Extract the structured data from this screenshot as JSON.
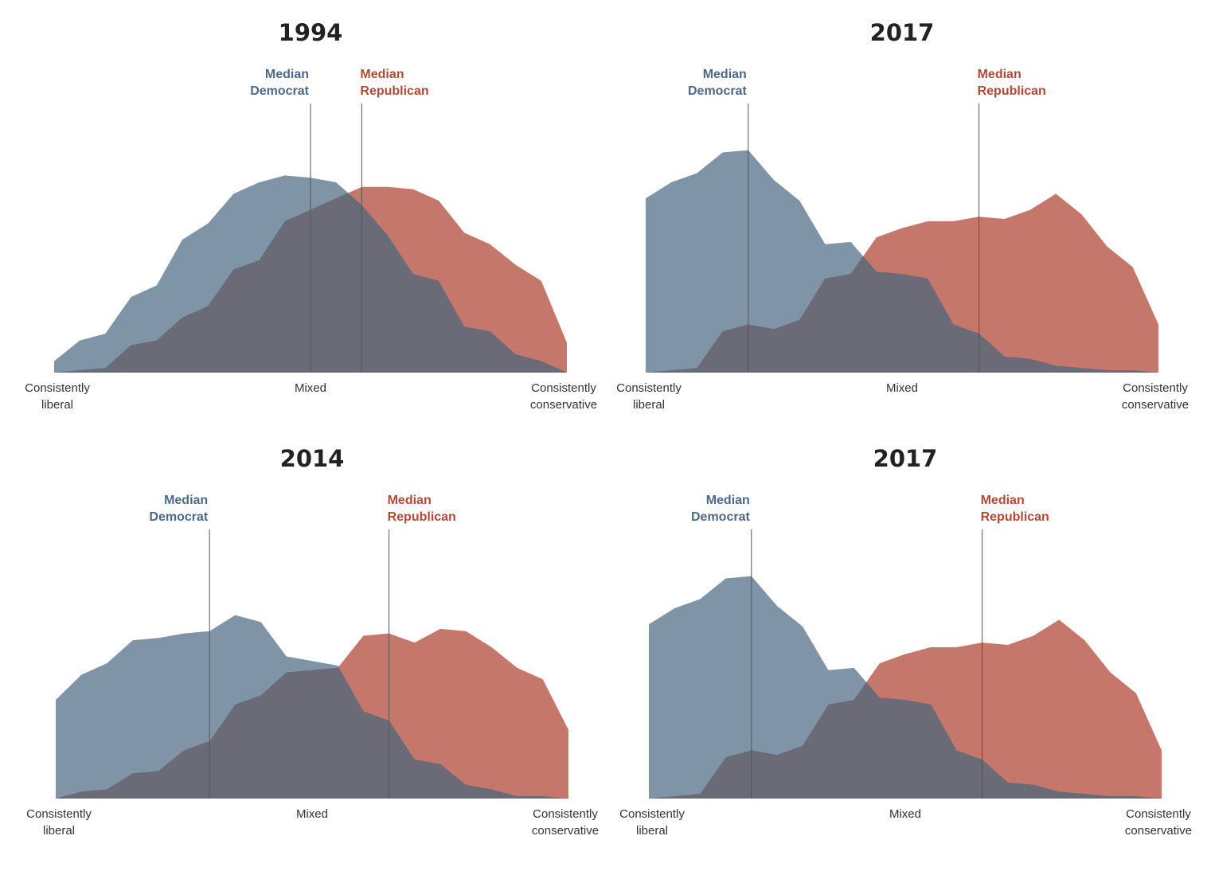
{
  "colors": {
    "democrat": "#4d6b85",
    "republican": "#b04a38",
    "overlap": "#6b6b78",
    "median_line": "#555555"
  },
  "chart_data": [
    {
      "type": "area",
      "title": "1994",
      "x_tick_labels": {
        "left": "Consistently liberal",
        "center": "Mixed",
        "right": "Consistently conservative"
      },
      "xlim": [
        0,
        20
      ],
      "ylim": [
        0,
        1
      ],
      "x": [
        0,
        1,
        2,
        3,
        4,
        5,
        6,
        7,
        8,
        9,
        10,
        11,
        12,
        13,
        14,
        15,
        16,
        17,
        18,
        19,
        20
      ],
      "series": [
        {
          "name": "Median Democrat",
          "values": [
            0.05,
            0.14,
            0.17,
            0.33,
            0.38,
            0.58,
            0.65,
            0.78,
            0.83,
            0.86,
            0.85,
            0.83,
            0.73,
            0.6,
            0.43,
            0.4,
            0.2,
            0.18,
            0.08,
            0.05,
            0.0
          ]
        },
        {
          "name": "Median Republican",
          "values": [
            0.0,
            0.01,
            0.02,
            0.12,
            0.14,
            0.24,
            0.29,
            0.45,
            0.49,
            0.66,
            0.71,
            0.76,
            0.81,
            0.81,
            0.8,
            0.75,
            0.61,
            0.56,
            0.47,
            0.4,
            0.13
          ]
        }
      ],
      "medians": {
        "democrat": {
          "label": "Median Democrat",
          "x": 10.0
        },
        "republican": {
          "label": "Median Republican",
          "x": 12.0
        }
      }
    },
    {
      "type": "area",
      "title": "2017",
      "x_tick_labels": {
        "left": "Consistently liberal",
        "center": "Mixed",
        "right": "Consistently conservative"
      },
      "xlim": [
        0,
        20
      ],
      "ylim": [
        0,
        1
      ],
      "x": [
        0,
        1,
        2,
        3,
        4,
        5,
        6,
        7,
        8,
        9,
        10,
        11,
        12,
        13,
        14,
        15,
        16,
        17,
        18,
        19,
        20
      ],
      "series": [
        {
          "name": "Median Democrat",
          "values": [
            0.76,
            0.83,
            0.87,
            0.96,
            0.97,
            0.84,
            0.75,
            0.56,
            0.57,
            0.44,
            0.43,
            0.41,
            0.21,
            0.17,
            0.07,
            0.06,
            0.03,
            0.02,
            0.01,
            0.01,
            0.0
          ]
        },
        {
          "name": "Median Republican",
          "values": [
            0.0,
            0.01,
            0.02,
            0.18,
            0.21,
            0.19,
            0.23,
            0.41,
            0.43,
            0.59,
            0.63,
            0.66,
            0.66,
            0.68,
            0.67,
            0.71,
            0.78,
            0.69,
            0.55,
            0.46,
            0.21
          ]
        }
      ],
      "medians": {
        "democrat": {
          "label": "Median Democrat",
          "x": 4.0
        },
        "republican": {
          "label": "Median Republican",
          "x": 13.0
        }
      }
    },
    {
      "type": "area",
      "title": "2014",
      "x_tick_labels": {
        "left": "Consistently liberal",
        "center": "Mixed",
        "right": "Consistently conservative"
      },
      "xlim": [
        0,
        20
      ],
      "ylim": [
        0,
        1
      ],
      "x": [
        0,
        1,
        2,
        3,
        4,
        5,
        6,
        7,
        8,
        9,
        10,
        11,
        12,
        13,
        14,
        15,
        16,
        17,
        18,
        19,
        20
      ],
      "series": [
        {
          "name": "Median Democrat",
          "values": [
            0.43,
            0.54,
            0.59,
            0.69,
            0.7,
            0.72,
            0.73,
            0.8,
            0.77,
            0.62,
            0.6,
            0.58,
            0.38,
            0.34,
            0.17,
            0.15,
            0.06,
            0.04,
            0.01,
            0.01,
            0.0
          ]
        },
        {
          "name": "Median Republican",
          "values": [
            0.0,
            0.03,
            0.04,
            0.11,
            0.12,
            0.21,
            0.25,
            0.41,
            0.45,
            0.55,
            0.56,
            0.57,
            0.71,
            0.72,
            0.68,
            0.74,
            0.73,
            0.66,
            0.57,
            0.52,
            0.3
          ]
        }
      ],
      "medians": {
        "democrat": {
          "label": "Median Democrat",
          "x": 6.0
        },
        "republican": {
          "label": "Median Republican",
          "x": 13.0
        }
      }
    },
    {
      "type": "area",
      "title": "2017",
      "x_tick_labels": {
        "left": "Consistently liberal",
        "center": "Mixed",
        "right": "Consistently conservative"
      },
      "xlim": [
        0,
        20
      ],
      "ylim": [
        0,
        1
      ],
      "x": [
        0,
        1,
        2,
        3,
        4,
        5,
        6,
        7,
        8,
        9,
        10,
        11,
        12,
        13,
        14,
        15,
        16,
        17,
        18,
        19,
        20
      ],
      "series": [
        {
          "name": "Median Democrat",
          "values": [
            0.76,
            0.83,
            0.87,
            0.96,
            0.97,
            0.84,
            0.75,
            0.56,
            0.57,
            0.44,
            0.43,
            0.41,
            0.21,
            0.17,
            0.07,
            0.06,
            0.03,
            0.02,
            0.01,
            0.01,
            0.0
          ]
        },
        {
          "name": "Median Republican",
          "values": [
            0.0,
            0.01,
            0.02,
            0.18,
            0.21,
            0.19,
            0.23,
            0.41,
            0.43,
            0.59,
            0.63,
            0.66,
            0.66,
            0.68,
            0.67,
            0.71,
            0.78,
            0.69,
            0.55,
            0.46,
            0.21
          ]
        }
      ],
      "medians": {
        "democrat": {
          "label": "Median Democrat",
          "x": 4.0
        },
        "republican": {
          "label": "Median Republican",
          "x": 13.0
        }
      }
    }
  ]
}
